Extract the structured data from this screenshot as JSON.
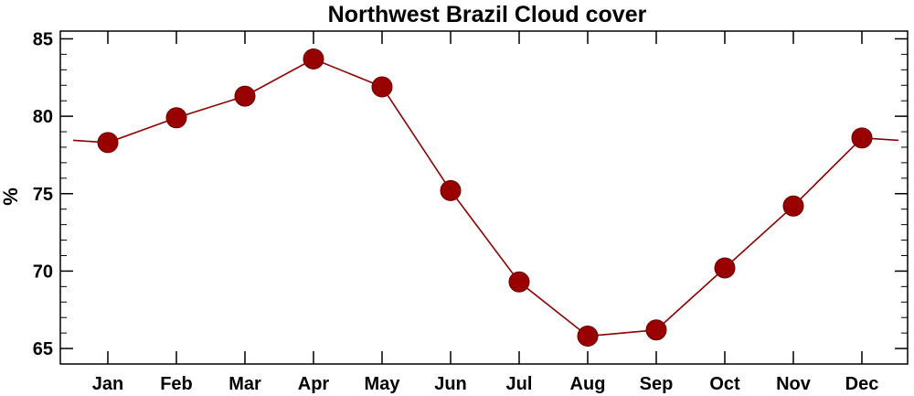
{
  "chart_data": {
    "type": "line",
    "title": "Northwest Brazil Cloud cover",
    "xlabel": "",
    "ylabel": "%",
    "categories": [
      "Jan",
      "Feb",
      "Mar",
      "Apr",
      "May",
      "Jun",
      "Jul",
      "Aug",
      "Sep",
      "Oct",
      "Nov",
      "Dec"
    ],
    "series": [
      {
        "values": [
          78.3,
          79.9,
          81.3,
          83.7,
          81.9,
          75.2,
          69.3,
          65.8,
          66.2,
          70.2,
          74.2,
          78.6
        ]
      }
    ],
    "ylim": [
      64,
      85.5
    ],
    "yticks": [
      65,
      70,
      75,
      80,
      85
    ],
    "y_tick_labels": [
      "65",
      "70",
      "75",
      "80",
      "85"
    ],
    "cyclic_wrap": true,
    "grid": false,
    "legend": "none",
    "colors": {
      "line": "#8b0000",
      "marker": "#990000",
      "axes": "#000000"
    }
  }
}
